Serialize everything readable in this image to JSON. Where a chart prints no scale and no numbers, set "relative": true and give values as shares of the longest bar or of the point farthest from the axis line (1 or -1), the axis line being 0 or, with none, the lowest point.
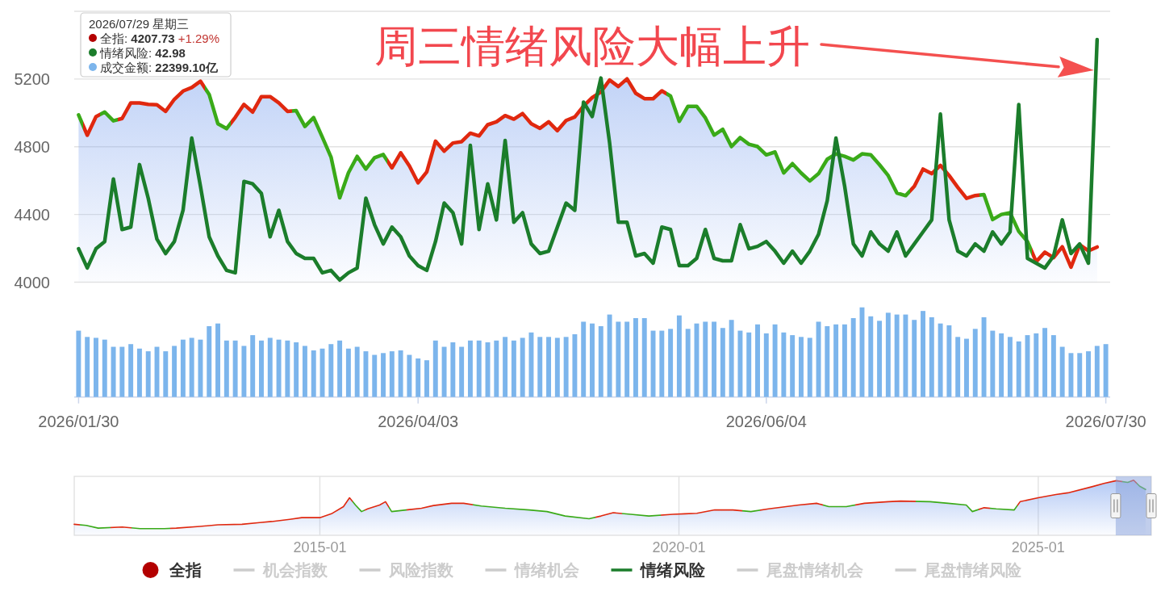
{
  "chart_data": [
    {
      "type": "area",
      "title": "周三情绪风险大幅上升",
      "categories": [
        null,
        null,
        null,
        null,
        null,
        null,
        null,
        null,
        null,
        null,
        null,
        null,
        null,
        null,
        null,
        null,
        null,
        null,
        null,
        null,
        null,
        null,
        null,
        null,
        null,
        null,
        null,
        null,
        null,
        null,
        null,
        null,
        null,
        null,
        null,
        null,
        null,
        null,
        null,
        null,
        null,
        null,
        null,
        null,
        null,
        null,
        null,
        null,
        null,
        null,
        null,
        null,
        null,
        null,
        null,
        null,
        null,
        null,
        null,
        null,
        null,
        null,
        null,
        null,
        null,
        null,
        null,
        null,
        null,
        null,
        null,
        null,
        null,
        null,
        null,
        null,
        null,
        null,
        null,
        null,
        null,
        null,
        null,
        null,
        null,
        null,
        null,
        null,
        null,
        null,
        null,
        null,
        null,
        null,
        null,
        null,
        null,
        null,
        null,
        null,
        null,
        null,
        null,
        null,
        null,
        null,
        null,
        null,
        null,
        null,
        null,
        null,
        null,
        null,
        null,
        null,
        null,
        null,
        null
      ],
      "series": [
        {
          "name": "全指",
          "color": "#b30000",
          "colors": [
            "#3aaa18",
            "#e0280f",
            "#e0280f",
            "#3aaa18",
            "#3aaa18",
            "#e0280f",
            "#e0280f",
            "#e0280f",
            "#e0280f",
            "#e0280f",
            "#e0280f",
            "#e0280f",
            "#e0280f",
            "#e0280f",
            "#e0280f",
            "#3aaa18",
            "#3aaa18",
            "#3aaa18",
            "#e0280f",
            "#e0280f",
            "#e0280f",
            "#e0280f",
            "#e0280f",
            "#e0280f",
            "#e0280f",
            "#3aaa18",
            "#3aaa18",
            "#3aaa18",
            "#3aaa18",
            "#3aaa18",
            "#3aaa18",
            "#3aaa18",
            "#3aaa18",
            "#3aaa18",
            "#3aaa18",
            "#3aaa18",
            "#e0280f",
            "#e0280f",
            "#e0280f",
            "#e0280f",
            "#e0280f",
            "#e0280f",
            "#e0280f",
            "#e0280f",
            "#e0280f",
            "#e0280f",
            "#e0280f",
            "#e0280f",
            "#e0280f",
            "#e0280f",
            "#e0280f",
            "#e0280f",
            "#e0280f",
            "#e0280f",
            "#e0280f",
            "#e0280f",
            "#e0280f",
            "#e0280f",
            "#e0280f",
            "#e0280f",
            "#e0280f",
            "#e0280f",
            "#e0280f",
            "#e0280f",
            "#e0280f",
            "#e0280f",
            "#e0280f",
            "#e0280f",
            "#3aaa18",
            "#3aaa18",
            "#3aaa18",
            "#3aaa18",
            "#3aaa18",
            "#3aaa18",
            "#3aaa18",
            "#3aaa18",
            "#3aaa18",
            "#3aaa18",
            "#3aaa18",
            "#3aaa18",
            "#3aaa18",
            "#3aaa18",
            "#3aaa18",
            "#3aaa18",
            "#3aaa18",
            "#3aaa18",
            "#3aaa18",
            "#3aaa18",
            "#3aaa18",
            "#3aaa18",
            "#3aaa18",
            "#3aaa18",
            "#3aaa18",
            "#3aaa18",
            "#3aaa18",
            "#3aaa18",
            "#e0280f",
            "#e0280f",
            "#e0280f",
            "#e0280f",
            "#e0280f",
            "#e0280f",
            "#e0280f",
            "#e0280f",
            "#3aaa18",
            "#3aaa18",
            "#3aaa18",
            "#3aaa18",
            "#3aaa18",
            "#3aaa18",
            "#e0280f",
            "#e0280f",
            "#e0280f",
            "#e0280f",
            "#e0280f",
            "#e0280f",
            "#e0280f",
            "#e0280f",
            null
          ],
          "values": [
            4988,
            4868,
            4978,
            5005,
            4953,
            4967,
            5059,
            5059,
            5050,
            5048,
            5009,
            5080,
            5129,
            5150,
            5187,
            5109,
            4936,
            4907,
            4974,
            5050,
            5005,
            5096,
            5096,
            5059,
            5009,
            5013,
            4920,
            4972,
            4857,
            4739,
            4498,
            4646,
            4743,
            4668,
            4735,
            4754,
            4675,
            4764,
            4687,
            4587,
            4652,
            4833,
            4774,
            4822,
            4830,
            4880,
            4864,
            4930,
            4947,
            4984,
            4963,
            4996,
            4936,
            4909,
            4947,
            4895,
            4955,
            4976,
            5040,
            5090,
            5124,
            5194,
            5156,
            5201,
            5116,
            5084,
            5084,
            5130,
            5099,
            4950,
            5039,
            5039,
            4971,
            4869,
            4903,
            4801,
            4854,
            4815,
            4801,
            4752,
            4769,
            4645,
            4700,
            4645,
            4598,
            4641,
            4726,
            4758,
            4743,
            4722,
            4758,
            4752,
            4694,
            4630,
            4527,
            4511,
            4566,
            4668,
            4641,
            4690,
            4630,
            4560,
            4495,
            4512,
            4517,
            4370,
            4400,
            4410,
            4300,
            4240,
            4121,
            4177,
            4145,
            4209,
            4089,
            4221,
            4185,
            4207.73,
            null
          ]
        },
        {
          "name": "机会指数",
          "color": "#cccccc",
          "values": [
            null,
            null,
            null,
            null,
            null,
            null,
            null,
            null,
            null,
            null,
            null,
            null,
            null,
            null,
            null,
            null,
            null,
            null,
            null,
            null,
            null,
            null,
            null,
            null,
            null,
            null,
            null,
            null,
            null,
            null,
            null,
            null,
            null,
            null,
            null,
            null,
            null,
            null,
            null,
            null,
            null,
            null,
            null,
            null,
            null,
            null,
            null,
            null,
            null,
            null,
            null,
            null,
            null,
            null,
            null,
            null,
            null,
            null,
            null,
            null,
            null,
            null,
            null,
            null,
            null,
            null,
            null,
            null,
            null,
            null,
            null,
            null,
            null,
            null,
            null,
            null,
            null,
            null,
            null,
            null,
            null,
            null,
            null,
            null,
            null,
            null,
            null,
            null,
            null,
            null,
            null,
            null,
            null,
            null,
            null,
            null,
            null,
            null,
            null,
            null,
            null,
            null,
            null,
            null,
            null,
            null,
            null,
            null,
            null,
            null,
            null,
            null,
            null,
            null,
            null,
            null,
            null,
            null,
            null
          ]
        },
        {
          "name": "风险指数",
          "color": "#cccccc",
          "values": [
            null,
            null,
            null,
            null,
            null,
            null,
            null,
            null,
            null,
            null,
            null,
            null,
            null,
            null,
            null,
            null,
            null,
            null,
            null,
            null,
            null,
            null,
            null,
            null,
            null,
            null,
            null,
            null,
            null,
            null,
            null,
            null,
            null,
            null,
            null,
            null,
            null,
            null,
            null,
            null,
            null,
            null,
            null,
            null,
            null,
            null,
            null,
            null,
            null,
            null,
            null,
            null,
            null,
            null,
            null,
            null,
            null,
            null,
            null,
            null,
            null,
            null,
            null,
            null,
            null,
            null,
            null,
            null,
            null,
            null,
            null,
            null,
            null,
            null,
            null,
            null,
            null,
            null,
            null,
            null,
            null,
            null,
            null,
            null,
            null,
            null,
            null,
            null,
            null,
            null,
            null,
            null,
            null,
            null,
            null,
            null,
            null,
            null,
            null,
            null,
            null,
            null,
            null,
            null,
            null,
            null,
            null,
            null,
            null,
            null,
            null,
            null,
            null,
            null,
            null,
            null,
            null,
            null,
            null
          ]
        }
      ],
      "ylim": [
        4000,
        5600
      ],
      "yticks": [
        4000,
        4400,
        4800,
        5200,
        {
          "value": 5600,
          "label": null
        }
      ],
      "grid": "y",
      "legend": "bottom",
      "tick_labels": "y",
      "annotations": [
        "2026/07/29 星期三",
        "全指: 4207.73 +1.29%",
        "情绪风险: 42.98",
        "成交金额: 22399.10亿"
      ]
    },
    {
      "type": "line",
      "relative": true,
      "categories": [
        null,
        null,
        null,
        null,
        null,
        null,
        null,
        null,
        null,
        null,
        null,
        null,
        null,
        null,
        null,
        null,
        null,
        null,
        null,
        null,
        null,
        null,
        null,
        null,
        null,
        null,
        null,
        null,
        null,
        null,
        null,
        null,
        null,
        null,
        null,
        null,
        null,
        null,
        null,
        null,
        null,
        null,
        null,
        null,
        null,
        null,
        null,
        null,
        null,
        null,
        null,
        null,
        null,
        null,
        null,
        null,
        null,
        null,
        null,
        null,
        null,
        null,
        null,
        null,
        null,
        null,
        null,
        null,
        null,
        null,
        null,
        null,
        null,
        null,
        null,
        null,
        null,
        null,
        null,
        null,
        null,
        null,
        null,
        null,
        null,
        null,
        null,
        null,
        null,
        null,
        null,
        null,
        null,
        null,
        null,
        null,
        null,
        null,
        null,
        null,
        null,
        null,
        null,
        null,
        null,
        null,
        null,
        null,
        null,
        null,
        null,
        null,
        null,
        null,
        null,
        null,
        null,
        null,
        null
      ],
      "series": [
        {
          "name": "情绪机会",
          "color": "#cccccc",
          "values": [
            null,
            null,
            null,
            null,
            null,
            null,
            null,
            null,
            null,
            null,
            null,
            null,
            null,
            null,
            null,
            null,
            null,
            null,
            null,
            null,
            null,
            null,
            null,
            null,
            null,
            null,
            null,
            null,
            null,
            null,
            null,
            null,
            null,
            null,
            null,
            null,
            null,
            null,
            null,
            null,
            null,
            null,
            null,
            null,
            null,
            null,
            null,
            null,
            null,
            null,
            null,
            null,
            null,
            null,
            null,
            null,
            null,
            null,
            null,
            null,
            null,
            null,
            null,
            null,
            null,
            null,
            null,
            null,
            null,
            null,
            null,
            null,
            null,
            null,
            null,
            null,
            null,
            null,
            null,
            null,
            null,
            null,
            null,
            null,
            null,
            null,
            null,
            null,
            null,
            null,
            null,
            null,
            null,
            null,
            null,
            null,
            null,
            null,
            null,
            null,
            null,
            null,
            null,
            null,
            null,
            null,
            null,
            null,
            null,
            null,
            null,
            null,
            null,
            null,
            null,
            null,
            null,
            null,
            null
          ]
        },
        {
          "name": "情绪风险",
          "color": "#1b7d2b",
          "values": [
            0.13,
            0.05,
            0.13,
            0.16,
            0.42,
            0.21,
            0.22,
            0.48,
            0.34,
            0.17,
            0.11,
            0.16,
            0.29,
            0.59,
            0.39,
            0.18,
            0.1,
            0.04,
            0.03,
            0.41,
            0.4,
            0.36,
            0.18,
            0.29,
            0.16,
            0.11,
            0.09,
            0.09,
            0.03,
            0.04,
            0,
            0.03,
            0.05,
            0.34,
            0.23,
            0.15,
            0.22,
            0.18,
            0.1,
            0.06,
            0.04,
            0.16,
            0.32,
            0.28,
            0.15,
            0.56,
            0.21,
            0.4,
            0.25,
            0.58,
            0.24,
            0.28,
            0.15,
            0.11,
            0.12,
            0.22,
            0.32,
            0.29,
            0.74,
            0.68,
            0.84,
            0.57,
            0.24,
            0.24,
            0.1,
            0.11,
            0.07,
            0.22,
            0.21,
            0.06,
            0.06,
            0.09,
            0.21,
            0.09,
            0.08,
            0.08,
            0.23,
            0.13,
            0.14,
            0.16,
            0.12,
            0.07,
            0.12,
            0.07,
            0.12,
            0.19,
            0.33,
            0.59,
            0.39,
            0.15,
            0.1,
            0.2,
            0.15,
            0.12,
            0.2,
            0.1,
            0.15,
            0.2,
            0.25,
            0.69,
            0.25,
            0.12,
            0.1,
            0.15,
            0.12,
            0.2,
            0.15,
            0.2,
            0.73,
            0.09,
            0.07,
            0.05,
            0.1,
            0.25,
            0.11,
            0.15,
            0.07,
            1,
            null
          ]
        },
        {
          "name": "尾盘情绪机会",
          "color": "#cccccc",
          "values": [
            null,
            null,
            null,
            null,
            null,
            null,
            null,
            null,
            null,
            null,
            null,
            null,
            null,
            null,
            null,
            null,
            null,
            null,
            null,
            null,
            null,
            null,
            null,
            null,
            null,
            null,
            null,
            null,
            null,
            null,
            null,
            null,
            null,
            null,
            null,
            null,
            null,
            null,
            null,
            null,
            null,
            null,
            null,
            null,
            null,
            null,
            null,
            null,
            null,
            null,
            null,
            null,
            null,
            null,
            null,
            null,
            null,
            null,
            null,
            null,
            null,
            null,
            null,
            null,
            null,
            null,
            null,
            null,
            null,
            null,
            null,
            null,
            null,
            null,
            null,
            null,
            null,
            null,
            null,
            null,
            null,
            null,
            null,
            null,
            null,
            null,
            null,
            null,
            null,
            null,
            null,
            null,
            null,
            null,
            null,
            null,
            null,
            null,
            null,
            null,
            null,
            null,
            null,
            null,
            null,
            null,
            null,
            null,
            null,
            null,
            null,
            null,
            null,
            null,
            null,
            null,
            null,
            null,
            null
          ]
        },
        {
          "name": "尾盘情绪风险",
          "color": "#cccccc",
          "values": [
            null,
            null,
            null,
            null,
            null,
            null,
            null,
            null,
            null,
            null,
            null,
            null,
            null,
            null,
            null,
            null,
            null,
            null,
            null,
            null,
            null,
            null,
            null,
            null,
            null,
            null,
            null,
            null,
            null,
            null,
            null,
            null,
            null,
            null,
            null,
            null,
            null,
            null,
            null,
            null,
            null,
            null,
            null,
            null,
            null,
            null,
            null,
            null,
            null,
            null,
            null,
            null,
            null,
            null,
            null,
            null,
            null,
            null,
            null,
            null,
            null,
            null,
            null,
            null,
            null,
            null,
            null,
            null,
            null,
            null,
            null,
            null,
            null,
            null,
            null,
            null,
            null,
            null,
            null,
            null,
            null,
            null,
            null,
            null,
            null,
            null,
            null,
            null,
            null,
            null,
            null,
            null,
            null,
            null,
            null,
            null,
            null,
            null,
            null,
            null,
            null,
            null,
            null,
            null,
            null,
            null,
            null,
            null,
            null,
            null,
            null,
            null,
            null,
            null,
            null,
            null,
            null,
            null,
            null
          ]
        }
      ],
      "legend": "bottom",
      "tick_labels": false
    },
    {
      "type": "bar",
      "relative": true,
      "categories": [
        "2026/01/30",
        null,
        null,
        null,
        null,
        null,
        null,
        null,
        null,
        null,
        null,
        null,
        null,
        null,
        null,
        null,
        null,
        null,
        null,
        null,
        null,
        null,
        null,
        null,
        null,
        null,
        null,
        null,
        null,
        null,
        null,
        null,
        null,
        null,
        null,
        null,
        null,
        null,
        null,
        "2026/04/03",
        null,
        null,
        null,
        null,
        null,
        null,
        null,
        null,
        null,
        null,
        null,
        null,
        null,
        null,
        null,
        null,
        null,
        null,
        null,
        null,
        null,
        null,
        null,
        null,
        null,
        null,
        null,
        null,
        null,
        null,
        null,
        null,
        null,
        null,
        null,
        null,
        null,
        null,
        null,
        "2026/06/04",
        null,
        null,
        null,
        null,
        null,
        null,
        null,
        null,
        null,
        null,
        null,
        null,
        null,
        null,
        null,
        null,
        null,
        null,
        null,
        null,
        null,
        null,
        null,
        null,
        null,
        null,
        null,
        null,
        null,
        null,
        null,
        null,
        null,
        null,
        null,
        null,
        null,
        null,
        "2026/07/30"
      ],
      "series": [
        {
          "color": "#7cb5ec",
          "values": [
            0.74,
            0.67,
            0.66,
            0.64,
            0.56,
            0.56,
            0.59,
            0.54,
            0.51,
            0.56,
            0.51,
            0.57,
            0.64,
            0.66,
            0.64,
            0.79,
            0.82,
            0.63,
            0.63,
            0.57,
            0.69,
            0.63,
            0.66,
            0.64,
            0.63,
            0.61,
            0.57,
            0.52,
            0.54,
            0.59,
            0.63,
            0.54,
            0.56,
            0.51,
            0.47,
            0.49,
            0.51,
            0.52,
            0.47,
            0.43,
            0.41,
            0.63,
            0.56,
            0.61,
            0.56,
            0.63,
            0.63,
            0.61,
            0.63,
            0.67,
            0.63,
            0.66,
            0.72,
            0.67,
            0.67,
            0.66,
            0.67,
            0.7,
            0.84,
            0.82,
            0.79,
            0.92,
            0.84,
            0.84,
            0.88,
            0.88,
            0.74,
            0.74,
            0.76,
            0.91,
            0.76,
            0.82,
            0.84,
            0.84,
            0.77,
            0.86,
            0.74,
            0.72,
            0.81,
            0.71,
            0.81,
            0.72,
            0.69,
            0.67,
            0.66,
            0.84,
            0.79,
            0.81,
            0.81,
            0.88,
            1,
            0.9,
            0.85,
            0.94,
            0.92,
            0.92,
            0.86,
            0.96,
            0.89,
            0.82,
            0.8,
            0.67,
            0.65,
            0.76,
            0.89,
            0.74,
            0.71,
            0.67,
            0.62,
            0.69,
            0.71,
            0.77,
            0.69,
            0.56,
            0.49,
            0.49,
            0.51,
            0.57,
            0.59
          ]
        }
      ],
      "tick_labels": "x"
    },
    {
      "type": "area",
      "relative": true,
      "x": [
        "2011-08",
        "2011-10",
        "2011-12",
        "2012-04",
        "2012-07",
        "2012-11",
        "2013-01",
        "2013-05",
        "2013-08",
        "2013-12",
        "2014-03",
        "2014-05",
        "2014-08",
        "2014-10",
        "2015-01",
        "2015-03",
        "2015-05",
        "2015-06",
        "2015-07",
        "2015-08",
        "2015-09",
        "2015-11",
        "2015-12",
        "2016-01",
        "2016-06",
        "2016-08",
        "2016-11",
        "2017-01",
        "2017-04",
        "2017-08",
        "2017-12",
        "2018-03",
        "2018-06",
        "2018-10",
        "2018-12",
        "2019-02",
        "2019-05",
        "2019-08",
        "2019-12",
        "2020-02",
        "2020-04",
        "2020-07",
        "2020-10",
        "2021-01",
        "2021-04",
        "2021-09",
        "2021-12",
        "2022-02",
        "2022-05",
        "2022-08",
        "2022-12",
        "2023-02",
        "2023-07",
        "2023-10",
        "2024-01",
        "2024-02",
        "2024-04",
        "2024-06",
        "2024-09",
        "2024-10",
        "2025-01",
        "2025-04",
        "2025-06",
        "2025-10",
        "2025-12",
        "2026-02",
        "2026-04",
        "2026-05",
        "2026-06",
        "2026-07"
      ],
      "series": [
        {
          "colors": [
            "#e0280f",
            "#3aaa18",
            "#3aaa18",
            "#e0280f",
            "#3aaa18",
            "#3aaa18",
            "#e0280f",
            "#e0280f",
            "#e0280f",
            "#e0280f",
            "#e0280f",
            "#e0280f",
            "#e0280f",
            "#e0280f",
            "#e0280f",
            "#e0280f",
            "#e0280f",
            "#e0280f",
            "#3aaa18",
            "#3aaa18",
            "#e0280f",
            "#e0280f",
            "#e0280f",
            "#3aaa18",
            "#e0280f",
            "#e0280f",
            "#e0280f",
            "#e0280f",
            "#3aaa18",
            "#3aaa18",
            "#3aaa18",
            "#3aaa18",
            "#3aaa18",
            "#3aaa18",
            "#e0280f",
            "#e0280f",
            "#3aaa18",
            "#3aaa18",
            "#e0280f",
            "#e0280f",
            "#e0280f",
            "#e0280f",
            "#e0280f",
            "#3aaa18",
            "#e0280f",
            "#e0280f",
            "#e0280f",
            "#3aaa18",
            "#3aaa18",
            "#e0280f",
            "#e0280f",
            "#e0280f",
            "#3aaa18",
            "#3aaa18",
            "#3aaa18",
            "#3aaa18",
            "#e0280f",
            "#3aaa18",
            "#3aaa18",
            "#e0280f",
            "#e0280f",
            "#e0280f",
            "#e0280f",
            "#e0280f",
            "#e0280f",
            "#e0280f",
            "#3aaa18",
            "#e0280f",
            "#3aaa18",
            "#3aaa18"
          ],
          "values": [
            0.2,
            0.18,
            0.13,
            0.15,
            0.12,
            0.12,
            0.13,
            0.16,
            0.19,
            0.2,
            0.23,
            0.25,
            0.29,
            0.32,
            0.32,
            0.39,
            0.52,
            0.68,
            0.55,
            0.43,
            0.48,
            0.55,
            0.61,
            0.43,
            0.49,
            0.54,
            0.58,
            0.58,
            0.53,
            0.49,
            0.46,
            0.43,
            0.35,
            0.3,
            0.35,
            0.41,
            0.38,
            0.35,
            0.38,
            0.39,
            0.4,
            0.46,
            0.46,
            0.43,
            0.48,
            0.55,
            0.58,
            0.52,
            0.52,
            0.58,
            0.61,
            0.62,
            0.61,
            0.58,
            0.55,
            0.43,
            0.5,
            0.48,
            0.46,
            0.61,
            0.68,
            0.74,
            0.77,
            0.88,
            0.94,
            0.99,
            0.96,
            1,
            0.89,
            0.83
          ]
        }
      ],
      "xlim": [
        "2011-08",
        "2026-07-30"
      ],
      "xticks": [
        "2015-01",
        "2020-01",
        "2025-01"
      ],
      "grid": "x",
      "tick_labels": "x",
      "bands": [
        {
          "axis": "x",
          "from": "2026-01-30",
          "to": "2026-07-30",
          "color": "#8ea6dc"
        }
      ]
    }
  ]
}
